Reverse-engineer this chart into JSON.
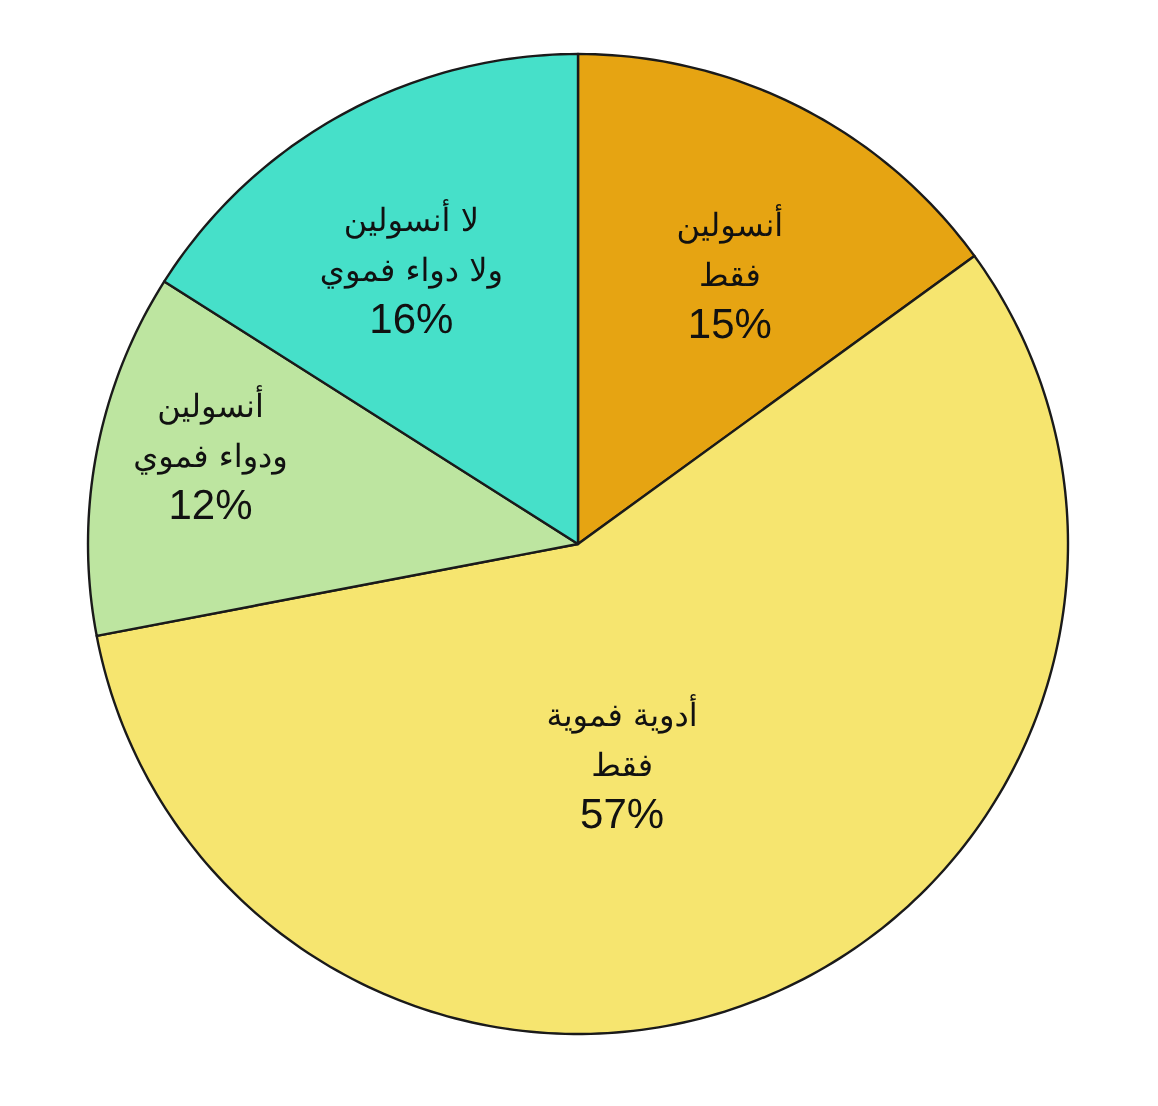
{
  "chart_data": {
    "type": "pie",
    "categories": [
      "أنسولين\nفقط",
      "أدوية فموية\nفقط",
      "أنسولين\nودواء فموي",
      "لا أنسولين\nولا دواء فموي"
    ],
    "values": [
      15,
      57,
      12,
      16
    ],
    "colors": [
      "#e6a412",
      "#f6e56f",
      "#bde5a0",
      "#46e0c9"
    ],
    "value_labels": [
      "15%",
      "57%",
      "12%",
      "16%"
    ]
  }
}
